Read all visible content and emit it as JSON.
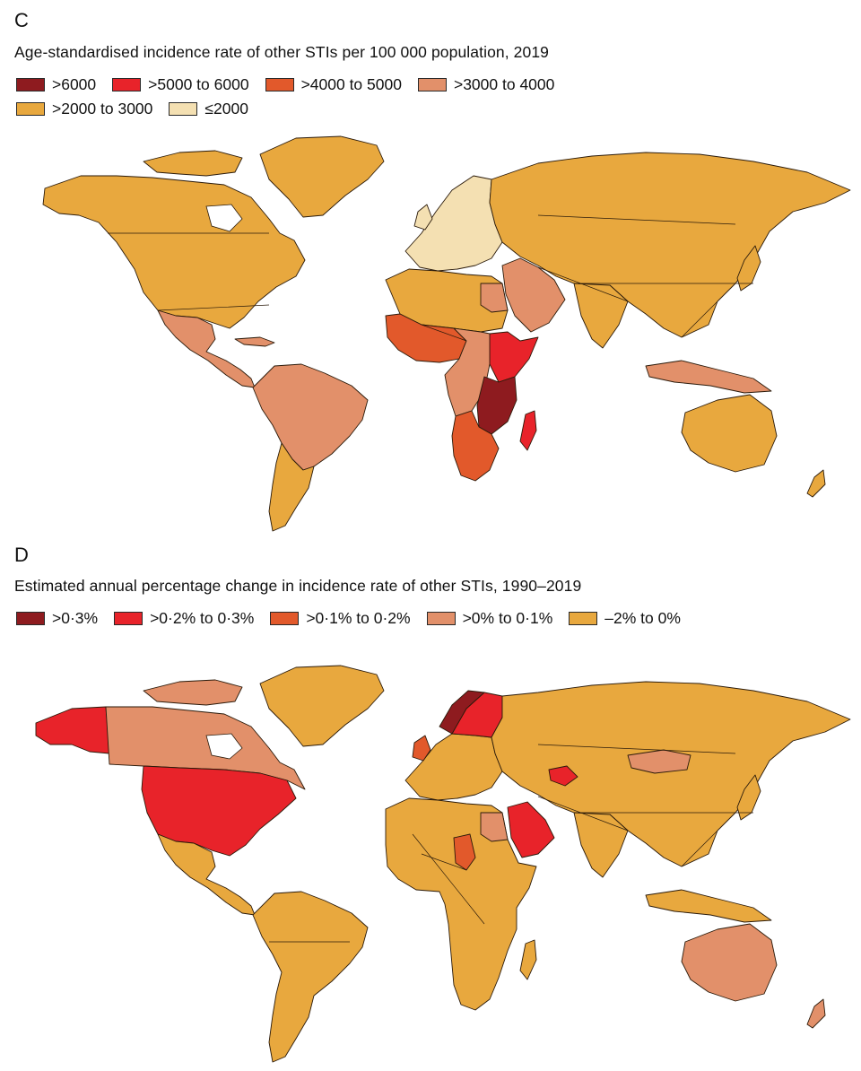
{
  "panel_c": {
    "letter": "C",
    "title": "Age-standardised incidence rate of other STIs per 100 000 population, 2019",
    "legend": [
      {
        "label": ">6000",
        "color": "#8e1b1f"
      },
      {
        "label": ">5000 to 6000",
        "color": "#e8232a"
      },
      {
        "label": ">4000 to 5000",
        "color": "#e2592b"
      },
      {
        "label": ">3000 to 4000",
        "color": "#e2906a"
      },
      {
        "label": ">2000 to 3000",
        "color": "#e8a83e"
      },
      {
        "label": "≤2000",
        "color": "#f4e0b2"
      }
    ],
    "regions": {
      "north_america": ">2000 to 3000",
      "greenland": ">2000 to 3000",
      "mexico_central_america": ">3000 to 4000",
      "south_america": ">3000 to 4000",
      "southern_cone": ">2000 to 3000",
      "europe": "≤2000",
      "russia_asia": ">2000 to 3000",
      "north_africa": ">2000 to 3000",
      "west_africa": ">4000 to 5000",
      "horn_of_africa": ">5000 to 6000",
      "east_africa": ">6000",
      "central_africa": ">3000 to 4000",
      "southern_africa": ">4000 to 5000",
      "madagascar": ">5000 to 6000",
      "middle_east": ">3000 to 4000",
      "southeast_asia_islands": ">3000 to 4000",
      "australia": ">2000 to 3000",
      "new_zealand": ">2000 to 3000"
    }
  },
  "panel_d": {
    "letter": "D",
    "title": "Estimated annual percentage change in incidence rate of other STIs, 1990–2019",
    "legend": [
      {
        "label": ">0·3%",
        "color": "#8e1b1f"
      },
      {
        "label": ">0·2% to 0·3%",
        "color": "#e8232a"
      },
      {
        "label": ">0·1% to 0·2%",
        "color": "#e2592b"
      },
      {
        "label": ">0% to 0·1%",
        "color": "#e2906a"
      },
      {
        "label": "–2% to 0%",
        "color": "#e8a83e"
      }
    ],
    "regions": {
      "alaska": ">0·2% to 0·3%",
      "canada": ">0% to 0·1%",
      "usa": ">0·2% to 0·3%",
      "greenland": "–2% to 0%",
      "mexico_central_america": "–2% to 0%",
      "south_america": "–2% to 0%",
      "scandinavia": ">0·2% to 0·3%",
      "norway": ">0·3%",
      "uk": ">0·1% to 0·2%",
      "europe": "–2% to 0%",
      "russia_asia": "–2% to 0%",
      "mongolia": ">0% to 0·1%",
      "arabian_peninsula": ">0·2% to 0·3%",
      "turkmenistan": ">0·2% to 0·3%",
      "africa": "–2% to 0%",
      "chad": ">0·1% to 0·2%",
      "egypt": ">0% to 0·1%",
      "australia": ">0% to 0·1%",
      "new_zealand": ">0% to 0·1%"
    }
  }
}
